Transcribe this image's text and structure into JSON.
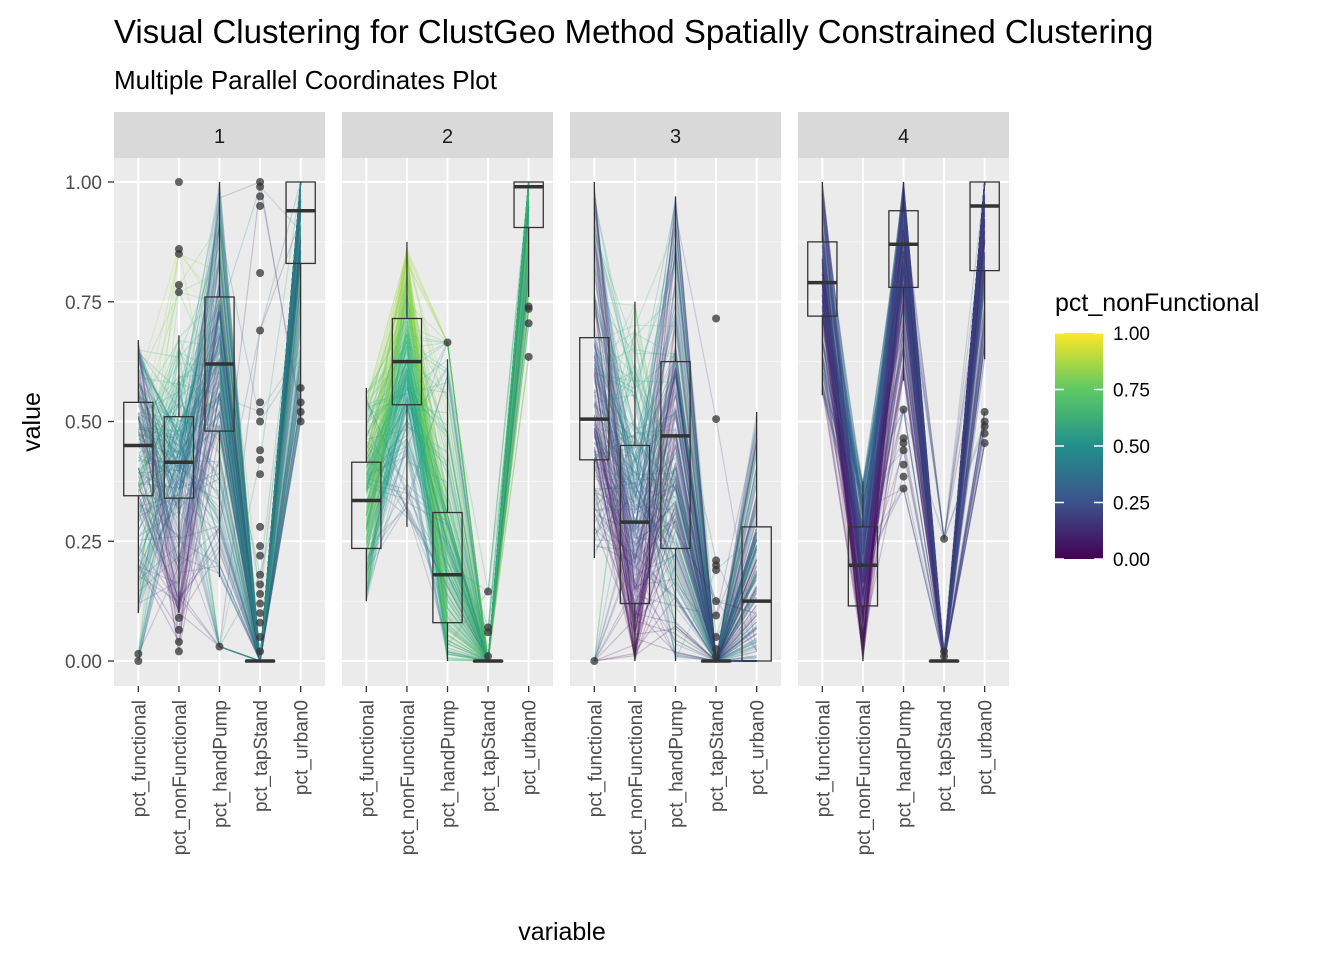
{
  "chart_data": {
    "type": "parallel-coordinates",
    "title": "Visual Clustering for ClustGeo Method Spatially Constrained Clustering",
    "subtitle": "Multiple Parallel Coordinates Plot",
    "xlabel": "variable",
    "ylabel": "value",
    "ylim": [
      -0.045,
      1.045
    ],
    "yticks": [
      0.0,
      0.25,
      0.5,
      0.75,
      1.0
    ],
    "ytick_labels": [
      "0.00",
      "0.25",
      "0.50",
      "0.75",
      "1.00"
    ],
    "variables": [
      "pct_functional",
      "pct_nonFunctional",
      "pct_handPump",
      "pct_tapStand",
      "pct_urban0"
    ],
    "grid": true,
    "legend": {
      "title": "pct_nonFunctional",
      "position": "right",
      "labels": [
        "1.00",
        "0.75",
        "0.50",
        "0.25",
        "0.00"
      ],
      "values": [
        1.0,
        0.75,
        0.5,
        0.25,
        0.0
      ],
      "colors": [
        "#440154",
        "#3b528b",
        "#21908c",
        "#5dc963",
        "#fde725"
      ]
    },
    "panels": [
      {
        "label": "1",
        "boxes": [
          {
            "q1": 0.345,
            "median": 0.45,
            "q3": 0.54,
            "whisker_low": 0.1,
            "whisker_high": 0.67,
            "outliers": [
              0.0,
              0.015
            ]
          },
          {
            "q1": 0.34,
            "median": 0.415,
            "q3": 0.51,
            "whisker_low": 0.1,
            "whisker_high": 0.68,
            "outliers": [
              0.02,
              0.04,
              0.065,
              0.09,
              0.77,
              0.785,
              0.85,
              0.86,
              1.0
            ]
          },
          {
            "q1": 0.48,
            "median": 0.62,
            "q3": 0.76,
            "whisker_low": 0.175,
            "whisker_high": 1.0,
            "outliers": [
              0.03
            ]
          },
          {
            "q1": 0.0,
            "median": 0.0,
            "q3": 0.0,
            "whisker_low": 0.0,
            "whisker_high": 0.0,
            "outliers": [
              0.02,
              0.05,
              0.08,
              0.1,
              0.12,
              0.14,
              0.16,
              0.18,
              0.22,
              0.24,
              0.28,
              0.39,
              0.42,
              0.44,
              0.5,
              0.52,
              0.54,
              0.69,
              0.81,
              0.95,
              0.97,
              0.99,
              1.0
            ]
          },
          {
            "q1": 0.83,
            "median": 0.94,
            "q3": 1.0,
            "whisker_low": 0.5,
            "whisker_high": 1.0,
            "outliers": [
              0.5,
              0.52,
              0.54,
              0.57
            ]
          }
        ]
      },
      {
        "label": "2",
        "boxes": [
          {
            "q1": 0.235,
            "median": 0.335,
            "q3": 0.415,
            "whisker_low": 0.125,
            "whisker_high": 0.57,
            "outliers": []
          },
          {
            "q1": 0.535,
            "median": 0.625,
            "q3": 0.715,
            "whisker_low": 0.28,
            "whisker_high": 0.875,
            "outliers": []
          },
          {
            "q1": 0.08,
            "median": 0.18,
            "q3": 0.31,
            "whisker_low": 0.0,
            "whisker_high": 0.63,
            "outliers": [
              0.665
            ]
          },
          {
            "q1": 0.0,
            "median": 0.0,
            "q3": 0.0,
            "whisker_low": 0.0,
            "whisker_high": 0.0,
            "outliers": [
              0.01,
              0.06,
              0.07,
              0.145
            ]
          },
          {
            "q1": 0.905,
            "median": 0.99,
            "q3": 1.0,
            "whisker_low": 0.76,
            "whisker_high": 1.0,
            "outliers": [
              0.635,
              0.705,
              0.735,
              0.74
            ]
          }
        ]
      },
      {
        "label": "3",
        "boxes": [
          {
            "q1": 0.42,
            "median": 0.505,
            "q3": 0.675,
            "whisker_low": 0.215,
            "whisker_high": 1.0,
            "outliers": [
              0.0
            ]
          },
          {
            "q1": 0.12,
            "median": 0.29,
            "q3": 0.45,
            "whisker_low": 0.0,
            "whisker_high": 0.75,
            "outliers": []
          },
          {
            "q1": 0.235,
            "median": 0.47,
            "q3": 0.625,
            "whisker_low": 0.0,
            "whisker_high": 0.97,
            "outliers": []
          },
          {
            "q1": 0.0,
            "median": 0.0,
            "q3": 0.0,
            "whisker_low": 0.0,
            "whisker_high": 0.0,
            "outliers": [
              0.01,
              0.025,
              0.05,
              0.095,
              0.125,
              0.19,
              0.2,
              0.21,
              0.505,
              0.715
            ]
          },
          {
            "q1": 0.0,
            "median": 0.125,
            "q3": 0.28,
            "whisker_low": 0.0,
            "whisker_high": 0.52,
            "outliers": []
          }
        ]
      },
      {
        "label": "4",
        "boxes": [
          {
            "q1": 0.72,
            "median": 0.79,
            "q3": 0.875,
            "whisker_low": 0.555,
            "whisker_high": 1.0,
            "outliers": []
          },
          {
            "q1": 0.115,
            "median": 0.2,
            "q3": 0.28,
            "whisker_low": 0.0,
            "whisker_high": 0.375,
            "outliers": []
          },
          {
            "q1": 0.78,
            "median": 0.87,
            "q3": 0.94,
            "whisker_low": 0.585,
            "whisker_high": 1.0,
            "outliers": [
              0.36,
              0.385,
              0.41,
              0.44,
              0.455,
              0.465,
              0.525
            ]
          },
          {
            "q1": 0.0,
            "median": 0.0,
            "q3": 0.0,
            "whisker_low": 0.0,
            "whisker_high": 0.0,
            "outliers": [
              0.01,
              0.02,
              0.255
            ]
          },
          {
            "q1": 0.815,
            "median": 0.95,
            "q3": 1.0,
            "whisker_low": 0.63,
            "whisker_high": 1.0,
            "outliers": [
              0.455,
              0.475,
              0.49,
              0.5,
              0.52
            ]
          }
        ]
      }
    ]
  }
}
